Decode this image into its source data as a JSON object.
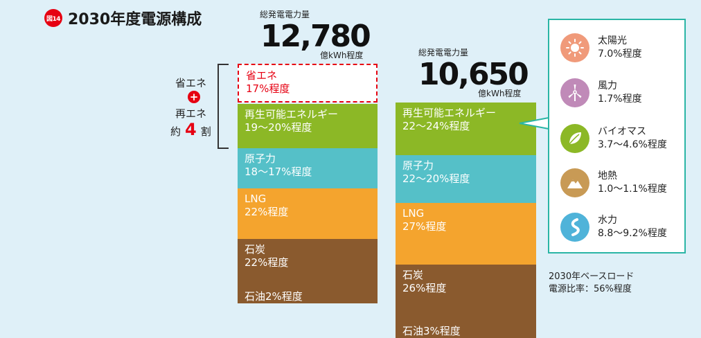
{
  "figure": {
    "badge": "図14",
    "title": "2030年度電源構成"
  },
  "chart_data": [
    {
      "type": "stacked-bar",
      "total_label": "総発電電力量",
      "total_value": "12,780",
      "total_unit": "億kWh程度",
      "segments": [
        {
          "key": "saving",
          "name": "省エネ",
          "value_text": "17%程度",
          "value": 17,
          "color": "#ffffff"
        },
        {
          "key": "renewable",
          "name": "再生可能エネルギー",
          "value_text": "19〜20%程度",
          "value": 19.5,
          "color": "#8cb826"
        },
        {
          "key": "nuclear",
          "name": "原子力",
          "value_text": "18〜17%程度",
          "value": 17.5,
          "color": "#55c0c8"
        },
        {
          "key": "lng",
          "name": "LNG",
          "value_text": "22%程度",
          "value": 22,
          "color": "#f4a42e"
        },
        {
          "key": "coal",
          "name": "石炭",
          "value_text": "22%程度",
          "value": 22,
          "color": "#8a5a2e"
        },
        {
          "key": "oil",
          "name": "石油2%程度",
          "value_text": "",
          "value": 2,
          "color": "#8a5a2e"
        }
      ]
    },
    {
      "type": "stacked-bar",
      "total_label": "総発電電力量",
      "total_value": "10,650",
      "total_unit": "億kWh程度",
      "segments": [
        {
          "key": "renewable",
          "name": "再生可能エネルギー",
          "value_text": "22〜24%程度",
          "value": 23,
          "color": "#8cb826"
        },
        {
          "key": "nuclear",
          "name": "原子力",
          "value_text": "22〜20%程度",
          "value": 21,
          "color": "#55c0c8"
        },
        {
          "key": "lng",
          "name": "LNG",
          "value_text": "27%程度",
          "value": 27,
          "color": "#f4a42e"
        },
        {
          "key": "coal",
          "name": "石炭",
          "value_text": "26%程度",
          "value": 26,
          "color": "#8a5a2e"
        },
        {
          "key": "oil",
          "name": "石油3%程度",
          "value_text": "",
          "value": 3,
          "color": "#8a5a2e"
        }
      ]
    }
  ],
  "bracket": {
    "line1": "省エネ",
    "plus": "+",
    "line2": "再エネ",
    "approx": "約",
    "num": "4",
    "unit": "割"
  },
  "renewables_breakdown": [
    {
      "name": "太陽光",
      "value": "7.0%程度",
      "icon": "sun-icon",
      "color": "#f09a7a"
    },
    {
      "name": "風力",
      "value": "1.7%程度",
      "icon": "wind-turbine-icon",
      "color": "#c08ab8"
    },
    {
      "name": "バイオマス",
      "value": "3.7〜4.6%程度",
      "icon": "leaf-icon",
      "color": "#8cb826"
    },
    {
      "name": "地熱",
      "value": "1.0〜1.1%程度",
      "icon": "mountain-icon",
      "color": "#c89a55"
    },
    {
      "name": "水力",
      "value": "8.8〜9.2%程度",
      "icon": "water-icon",
      "color": "#4fb3d9"
    }
  ],
  "baseload": {
    "line1": "2030年ベースロード",
    "line2": "電源比率：56%程度"
  }
}
